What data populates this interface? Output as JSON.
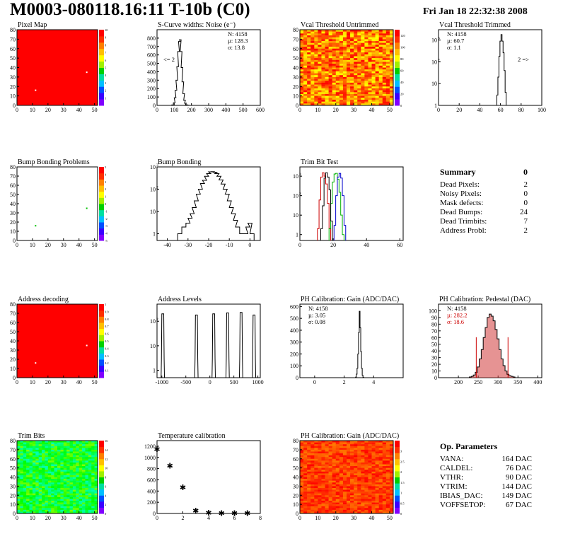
{
  "header": {
    "title": "M0003-080118.16:11 T-10b (C0)",
    "date": "Fri Jan 18 22:32:38 2008"
  },
  "colors": {
    "map_red": "#ff0000",
    "palette": [
      "#8000ff",
      "#3a00ff",
      "#0050ff",
      "#00bfff",
      "#00e0a0",
      "#00d000",
      "#a0f000",
      "#ffff00",
      "#ffc000",
      "#ff8000",
      "#ff3000",
      "#ff0000"
    ]
  },
  "chart_data": [
    {
      "id": "pixel-map",
      "type": "heatmap",
      "title": "Pixel Map",
      "xlim": [
        0,
        52
      ],
      "ylim": [
        0,
        80
      ],
      "xticks": [
        0,
        10,
        20,
        30,
        40,
        50
      ],
      "yticks": [
        0,
        10,
        20,
        30,
        40,
        50,
        60,
        70,
        80
      ],
      "fill": "uniform",
      "zscale": [
        0,
        10
      ],
      "zticks": [
        1,
        2,
        3,
        4,
        5,
        6,
        7,
        8,
        9,
        10
      ],
      "points": [
        {
          "x": 12,
          "y": 16
        },
        {
          "x": 45,
          "y": 35
        }
      ]
    },
    {
      "id": "scurve-noise",
      "type": "histogram",
      "title": "S-Curve widths: Noise (e⁻)",
      "xlim": [
        0,
        600
      ],
      "ylim": [
        0,
        900
      ],
      "xticks": [
        0,
        100,
        200,
        300,
        400,
        500,
        600
      ],
      "yticks": [
        0,
        100,
        200,
        300,
        400,
        500,
        600,
        700,
        800
      ],
      "stats": [
        "N: 4158",
        "µ: 128.3",
        "σ: 13.8"
      ],
      "annotations": [
        "<= 2"
      ],
      "series": [
        {
          "color": "#000",
          "x": [
            80,
            90,
            100,
            105,
            110,
            115,
            120,
            125,
            130,
            135,
            140,
            145,
            150,
            155,
            160,
            165,
            170,
            180,
            190
          ],
          "values": [
            0,
            5,
            30,
            90,
            180,
            300,
            460,
            640,
            760,
            780,
            640,
            450,
            280,
            140,
            60,
            25,
            8,
            2,
            0
          ]
        }
      ]
    },
    {
      "id": "vcal-untrimmed",
      "type": "heatmap",
      "title": "Vcal Threshold Untrimmed",
      "xlim": [
        0,
        52
      ],
      "ylim": [
        0,
        80
      ],
      "xticks": [
        0,
        10,
        20,
        30,
        40,
        50
      ],
      "yticks": [
        0,
        10,
        20,
        30,
        40,
        50,
        60,
        70,
        80
      ],
      "fill": "noise",
      "noise_hues": [
        0.0,
        0.17
      ],
      "zscale": [
        0,
        130
      ],
      "zticks": [
        0,
        20,
        40,
        60,
        80,
        100,
        120
      ]
    },
    {
      "id": "vcal-trimmed",
      "type": "histogram",
      "title": "Vcal Threshold Trimmed",
      "xlim": [
        0,
        100
      ],
      "ylim": [
        1,
        3000
      ],
      "logy": true,
      "xticks": [
        0,
        20,
        40,
        60,
        80,
        100
      ],
      "yticks": [
        1,
        10,
        100,
        1000
      ],
      "stats": [
        "N: 4158",
        "µ: 60.7",
        "σ:  1.1"
      ],
      "annotations": [
        "2 =>"
      ],
      "series": [
        {
          "color": "#000",
          "x": [
            56,
            57,
            58,
            59,
            60,
            61,
            62,
            63,
            64,
            65,
            66
          ],
          "values": [
            1,
            3,
            20,
            180,
            900,
            1800,
            900,
            260,
            40,
            4,
            1
          ]
        }
      ]
    },
    {
      "id": "bump-problems",
      "type": "heatmap",
      "title": "Bump Bonding Problems",
      "xlim": [
        0,
        52
      ],
      "ylim": [
        0,
        80
      ],
      "xticks": [
        0,
        10,
        20,
        30,
        40,
        50
      ],
      "yticks": [
        0,
        10,
        20,
        30,
        40,
        50,
        60,
        70,
        80
      ],
      "fill": "empty",
      "zscale": [
        -5,
        5
      ],
      "zticks": [
        -5,
        -4,
        -3,
        -2,
        -1,
        0,
        1,
        2,
        3,
        4,
        5
      ],
      "points": [
        {
          "x": 12,
          "y": 16
        },
        {
          "x": 45,
          "y": 35
        }
      ]
    },
    {
      "id": "bump-bonding",
      "type": "histogram",
      "title": "Bump Bonding",
      "xlim": [
        -45,
        5
      ],
      "ylim": [
        0.5,
        1000
      ],
      "logy": true,
      "xticks": [
        -40,
        -30,
        -20,
        -10,
        0
      ],
      "yticks": [
        1,
        10,
        100,
        1000
      ],
      "series": [
        {
          "color": "#000",
          "x": [
            -34,
            -32,
            -30,
            -29,
            -28,
            -27,
            -26,
            -25,
            -24,
            -23,
            -22,
            -21,
            -20,
            -19,
            -18,
            -17,
            -16,
            -15,
            -14,
            -13,
            -12,
            -11,
            -10,
            -9,
            -8,
            -7,
            -6,
            -4,
            -2,
            -1,
            0,
            1
          ],
          "values": [
            1,
            2,
            3,
            5,
            8,
            15,
            30,
            60,
            100,
            180,
            250,
            380,
            500,
            600,
            610,
            580,
            500,
            380,
            260,
            170,
            100,
            60,
            30,
            15,
            8,
            4,
            2,
            1,
            1,
            2,
            3,
            1
          ]
        }
      ]
    },
    {
      "id": "trim-bit-test",
      "type": "histogram",
      "title": "Trim Bit Test",
      "xlim": [
        0,
        62
      ],
      "ylim": [
        0.5,
        3000
      ],
      "logy": true,
      "xticks": [
        0,
        20,
        40,
        60
      ],
      "yticks": [
        1,
        10,
        100,
        1000
      ],
      "series": [
        {
          "color": "#cc0000",
          "x": [
            11,
            12,
            13,
            14,
            15,
            16,
            17,
            18
          ],
          "values": [
            2,
            60,
            900,
            1500,
            1000,
            400,
            40,
            2
          ]
        },
        {
          "color": "#00b000",
          "x": [
            18,
            19,
            20,
            21,
            22,
            23,
            24,
            25,
            26
          ],
          "values": [
            2,
            40,
            500,
            1300,
            1400,
            700,
            150,
            10,
            1
          ]
        },
        {
          "color": "#000000",
          "x": [
            13,
            14,
            15,
            16,
            17,
            18,
            19
          ],
          "values": [
            2,
            30,
            800,
            1500,
            900,
            200,
            5
          ]
        },
        {
          "color": "#0000cc",
          "x": [
            21,
            22,
            23,
            24,
            25,
            26,
            27
          ],
          "values": [
            3,
            100,
            900,
            1400,
            800,
            100,
            3
          ]
        }
      ]
    },
    {
      "id": "address-decoding",
      "type": "heatmap",
      "title": "Address decoding",
      "xlim": [
        0,
        52
      ],
      "ylim": [
        0,
        80
      ],
      "xticks": [
        0,
        10,
        20,
        30,
        40,
        50
      ],
      "yticks": [
        0,
        10,
        20,
        30,
        40,
        50,
        60,
        70,
        80
      ],
      "fill": "uniform",
      "zscale": [
        0,
        1
      ],
      "zticks": [
        0.1,
        0.2,
        0.3,
        0.4,
        0.5,
        0.6,
        0.7,
        0.8,
        0.9,
        1
      ],
      "points": [
        {
          "x": 12,
          "y": 16
        },
        {
          "x": 45,
          "y": 35
        }
      ]
    },
    {
      "id": "address-levels",
      "type": "histogram",
      "title": "Address Levels",
      "xlim": [
        -1100,
        1050
      ],
      "ylim": [
        0.5,
        500
      ],
      "logy": true,
      "xticks": [
        -1000,
        -500,
        0,
        500,
        1000
      ],
      "yticks": [
        1,
        10,
        100
      ],
      "series": [
        {
          "color": "#000",
          "peaks": [
            {
              "center": -980,
              "height": 200
            },
            {
              "center": -280,
              "height": 180
            },
            {
              "center": 80,
              "height": 200
            },
            {
              "center": 370,
              "height": 220
            },
            {
              "center": 650,
              "height": 230
            },
            {
              "center": 920,
              "height": 180
            }
          ]
        }
      ]
    },
    {
      "id": "ph-gain",
      "type": "histogram",
      "title": "PH Calibration: Gain (ADC/DAC)",
      "xlim": [
        -1,
        6
      ],
      "ylim": [
        0,
        620
      ],
      "xticks": [
        0,
        2,
        4
      ],
      "yticks": [
        0,
        100,
        200,
        300,
        400,
        500,
        600
      ],
      "stats": [
        "N: 4158",
        "µ: 3.05",
        "σ: 0.08"
      ],
      "series": [
        {
          "color": "#000",
          "x": [
            2.75,
            2.8,
            2.85,
            2.9,
            2.95,
            3.0,
            3.05,
            3.1,
            3.15,
            3.2,
            3.25,
            3.3,
            3.35
          ],
          "values": [
            0,
            5,
            30,
            80,
            200,
            380,
            560,
            420,
            220,
            80,
            20,
            4,
            0
          ]
        }
      ]
    },
    {
      "id": "ph-pedestal",
      "type": "histogram",
      "title": "PH Calibration: Pedestal (DAC)",
      "xlim": [
        150,
        410
      ],
      "ylim": [
        0,
        110
      ],
      "xticks": [
        200,
        250,
        300,
        350,
        400
      ],
      "yticks": [
        0,
        10,
        20,
        30,
        40,
        50,
        60,
        70,
        80,
        90,
        100
      ],
      "stats": [
        "N: 4158",
        "µ:  282.2",
        "σ:  18.6"
      ],
      "stats_colors": [
        "#000",
        "#c00",
        "#c00"
      ],
      "cut_lines": [
        245,
        325
      ],
      "series": [
        {
          "color": "#000",
          "fill": "#d23a3a",
          "x": [
            230,
            235,
            240,
            245,
            250,
            255,
            260,
            265,
            270,
            275,
            280,
            285,
            290,
            295,
            300,
            305,
            310,
            315,
            320,
            325,
            330,
            335,
            340
          ],
          "values": [
            1,
            2,
            4,
            8,
            16,
            28,
            42,
            60,
            75,
            90,
            95,
            92,
            85,
            72,
            58,
            42,
            28,
            18,
            10,
            5,
            3,
            2,
            1
          ]
        }
      ]
    },
    {
      "id": "trim-bits",
      "type": "heatmap",
      "title": "Trim Bits",
      "xlim": [
        0,
        52
      ],
      "ylim": [
        0,
        80
      ],
      "xticks": [
        0,
        10,
        20,
        30,
        40,
        50
      ],
      "yticks": [
        0,
        10,
        20,
        30,
        40,
        50,
        60,
        70,
        80
      ],
      "fill": "noise",
      "noise_hues": [
        0.25,
        0.45
      ],
      "zscale": [
        0,
        16
      ],
      "zticks": [
        0,
        2,
        4,
        6,
        8,
        10,
        12,
        14,
        16
      ]
    },
    {
      "id": "temperature-calibration",
      "type": "scatter",
      "title": "Temperature calibration",
      "xlim": [
        0,
        8
      ],
      "ylim": [
        0,
        1300
      ],
      "xticks": [
        0,
        2,
        4,
        6,
        8
      ],
      "yticks": [
        0,
        200,
        400,
        600,
        800,
        1000,
        1200
      ],
      "series": [
        {
          "color": "#000",
          "x": [
            0,
            1,
            2,
            3,
            4,
            5,
            6,
            7
          ],
          "values": [
            1150,
            850,
            470,
            50,
            10,
            5,
            5,
            5
          ]
        }
      ]
    },
    {
      "id": "ph-gain-map",
      "type": "heatmap",
      "title": "PH Calibration: Gain (ADC/DAC)",
      "xlim": [
        0,
        52
      ],
      "ylim": [
        0,
        80
      ],
      "xticks": [
        0,
        10,
        20,
        30,
        40,
        50
      ],
      "yticks": [
        0,
        10,
        20,
        30,
        40,
        50,
        60,
        70,
        80
      ],
      "fill": "noise",
      "noise_hues": [
        0.0,
        0.08
      ],
      "zscale": [
        0,
        3.5
      ],
      "zticks": [
        0,
        0.5,
        1,
        1.5,
        2,
        2.5,
        3
      ]
    }
  ],
  "summary": {
    "title": "Summary",
    "value": "0",
    "rows": [
      {
        "label": "Dead Pixels:",
        "value": "2"
      },
      {
        "label": "Noisy Pixels:",
        "value": "0"
      },
      {
        "label": "Mask defects:",
        "value": "0"
      },
      {
        "label": "Dead Bumps:",
        "value": "24"
      },
      {
        "label": "Dead Trimbits:",
        "value": "7"
      },
      {
        "label": "Address Probl:",
        "value": "2"
      }
    ]
  },
  "op_params": {
    "title": "Op. Parameters",
    "rows": [
      {
        "label": "VANA:",
        "value": "164 DAC"
      },
      {
        "label": "CALDEL:",
        "value": "76 DAC"
      },
      {
        "label": "VTHR:",
        "value": "90 DAC"
      },
      {
        "label": "VTRIM:",
        "value": "144 DAC"
      },
      {
        "label": "IBIAS_DAC:",
        "value": "149 DAC"
      },
      {
        "label": "VOFFSETOP:",
        "value": "67 DAC"
      }
    ]
  }
}
